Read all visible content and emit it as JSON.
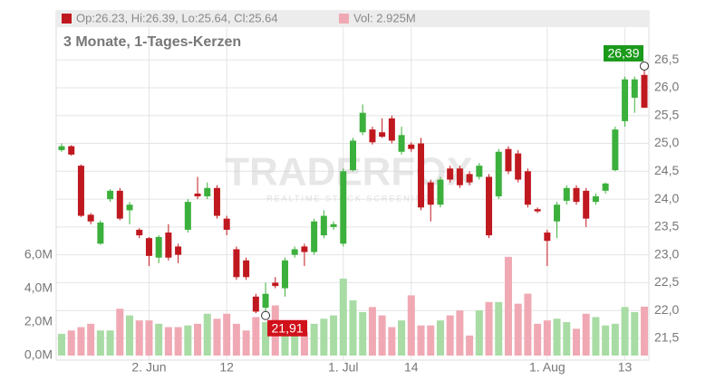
{
  "chart_data": {
    "type": "candlestick",
    "legend": [
      "Op:26.23, Hi:26.39, Lo:25.64, Cl:25.64",
      "Vol: 2.925M"
    ],
    "title": "3 Monate, 1-Tages-Kerzen",
    "watermark": [
      "TRADERFOX",
      "REALTIME STOCK SCREENING"
    ],
    "categories": [
      null,
      null,
      null,
      null,
      null,
      null,
      null,
      null,
      null,
      "2. Jun",
      null,
      null,
      null,
      null,
      null,
      null,
      null,
      "12",
      null,
      null,
      null,
      null,
      null,
      null,
      null,
      null,
      null,
      null,
      null,
      "1. Jul",
      null,
      null,
      null,
      null,
      null,
      null,
      "14",
      null,
      null,
      null,
      null,
      null,
      null,
      null,
      null,
      null,
      null,
      null,
      null,
      null,
      "1. Aug",
      null,
      null,
      null,
      null,
      null,
      null,
      null,
      "13",
      null,
      null
    ],
    "open": [
      24.88,
      24.95,
      24.6,
      23.72,
      23.2,
      24.0,
      24.15,
      23.8,
      23.45,
      23.3,
      22.95,
      23.4,
      23.15,
      23.45,
      24.1,
      24.05,
      24.2,
      23.65,
      23.1,
      22.9,
      22.25,
      22.05,
      22.5,
      22.4,
      23.0,
      23.15,
      23.05,
      23.35,
      23.5,
      23.2,
      24.52,
      25.2,
      25.25,
      25.2,
      25.45,
      24.85,
      24.98,
      25.0,
      24.3,
      23.9,
      24.55,
      24.55,
      24.45,
      24.4,
      24.4,
      24.05,
      24.9,
      24.82,
      24.5,
      23.82,
      23.4,
      23.6,
      23.97,
      24.2,
      24.15,
      23.95,
      24.15,
      24.52,
      25.4,
      25.82,
      26.23
    ],
    "high": [
      25.0,
      24.97,
      24.62,
      23.75,
      23.62,
      24.18,
      24.2,
      23.95,
      23.48,
      23.32,
      23.35,
      23.55,
      23.2,
      24.0,
      24.4,
      24.3,
      24.25,
      23.7,
      23.15,
      22.95,
      22.3,
      22.5,
      22.6,
      22.95,
      23.15,
      23.2,
      23.65,
      23.8,
      23.6,
      24.55,
      25.1,
      25.7,
      25.3,
      25.45,
      25.5,
      25.3,
      25.02,
      25.1,
      24.35,
      24.4,
      24.6,
      24.6,
      24.5,
      24.65,
      24.45,
      24.9,
      24.95,
      24.88,
      24.55,
      23.85,
      23.45,
      23.95,
      24.25,
      24.25,
      24.2,
      24.1,
      24.3,
      25.3,
      26.2,
      26.2,
      26.39
    ],
    "low": [
      24.85,
      24.78,
      23.68,
      23.55,
      23.18,
      23.95,
      23.62,
      23.55,
      23.3,
      22.8,
      22.85,
      22.9,
      22.85,
      23.4,
      24.0,
      24.0,
      23.65,
      23.35,
      22.55,
      22.55,
      21.95,
      21.91,
      22.4,
      22.25,
      22.95,
      22.8,
      23.0,
      23.3,
      23.45,
      23.15,
      24.5,
      25.15,
      24.98,
      25.1,
      25.0,
      24.8,
      24.85,
      23.8,
      23.6,
      23.85,
      24.3,
      24.2,
      24.25,
      24.35,
      23.3,
      24.0,
      24.45,
      24.3,
      23.85,
      23.75,
      22.8,
      23.3,
      23.9,
      23.9,
      23.5,
      23.9,
      24.1,
      24.5,
      25.3,
      25.55,
      25.64
    ],
    "close": [
      24.95,
      24.8,
      23.7,
      23.6,
      23.58,
      24.15,
      23.65,
      23.9,
      23.35,
      22.98,
      23.32,
      22.95,
      23.0,
      23.95,
      24.05,
      24.2,
      23.7,
      23.45,
      22.6,
      22.6,
      21.98,
      22.3,
      22.44,
      22.9,
      23.1,
      23.05,
      23.6,
      23.7,
      23.55,
      24.5,
      25.05,
      25.55,
      25.02,
      25.12,
      25.05,
      25.15,
      24.9,
      23.85,
      23.9,
      24.35,
      24.35,
      24.25,
      24.3,
      24.6,
      23.35,
      24.85,
      24.5,
      24.35,
      23.9,
      23.78,
      23.25,
      23.9,
      24.2,
      23.95,
      23.65,
      24.05,
      24.28,
      25.25,
      26.15,
      26.15,
      25.64
    ],
    "volume": [
      1.3,
      1.5,
      1.7,
      1.9,
      1.5,
      1.5,
      2.8,
      2.4,
      2.1,
      2.1,
      1.9,
      1.7,
      1.7,
      1.8,
      1.9,
      2.5,
      2.2,
      2.5,
      1.9,
      1.5,
      2.3,
      2.0,
      3.0,
      1.7,
      1.9,
      1.4,
      1.9,
      2.2,
      2.4,
      4.6,
      3.3,
      2.6,
      2.9,
      2.4,
      1.7,
      2.1,
      3.6,
      1.8,
      1.8,
      2.1,
      2.4,
      2.7,
      1.2,
      2.7,
      3.2,
      3.2,
      5.9,
      3.1,
      3.7,
      1.9,
      2.1,
      2.2,
      2.0,
      1.6,
      2.5,
      2.3,
      1.8,
      1.9,
      2.9,
      2.6,
      2.925
    ],
    "up_color": "#3cb03c",
    "down_color": "#c0181f",
    "volume_up_color": "#a8dca4",
    "volume_down_color": "#f0a9b4",
    "ylim": [
      21.11,
      27.38
    ],
    "yticks": [
      {
        "value": 21.5,
        "label": "21,5"
      },
      {
        "value": 22,
        "label": "22,0"
      },
      {
        "value": 22.5,
        "label": "22,5"
      },
      {
        "value": 23,
        "label": "23,0"
      },
      {
        "value": 23.5,
        "label": "23,5"
      },
      {
        "value": 24,
        "label": "24,0"
      },
      {
        "value": 24.5,
        "label": "24,5"
      },
      {
        "value": 25,
        "label": "25,0"
      },
      {
        "value": 25.5,
        "label": "25,5"
      },
      {
        "value": 26,
        "label": "26,0"
      },
      {
        "value": 26.5,
        "label": "26,5"
      }
    ],
    "y2lim": [
      0,
      20.6
    ],
    "y2ticks": [
      {
        "value": 0,
        "label": "0,0M"
      },
      {
        "value": 2,
        "label": "2,0M"
      },
      {
        "value": 4,
        "label": "4,0M"
      },
      {
        "value": 6,
        "label": "6,0M"
      }
    ],
    "annotations": [
      {
        "value": 26.39,
        "label": "26,39",
        "color": "#1a9a1a"
      },
      {
        "value": 21.91,
        "label": "21,91",
        "color": "#d0101a"
      }
    ],
    "grid": true
  }
}
